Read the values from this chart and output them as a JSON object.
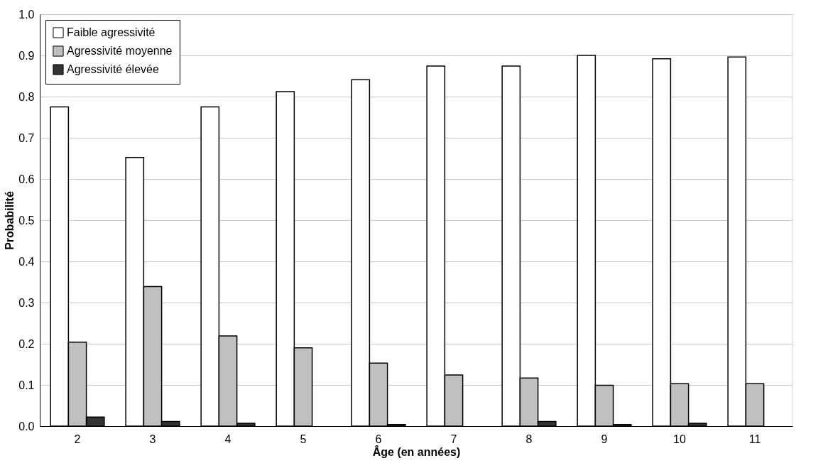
{
  "chart_data": {
    "type": "bar",
    "xlabel": "Âge (en années)",
    "ylabel": "Probabilité",
    "categories": [
      "2",
      "3",
      "4",
      "5",
      "6",
      "7",
      "8",
      "9",
      "10",
      "11"
    ],
    "series": [
      {
        "name": "Faible agressivité",
        "color": "#ffffff",
        "values": [
          0.775,
          0.652,
          0.775,
          0.812,
          0.841,
          0.874,
          0.874,
          0.9,
          0.892,
          0.896
        ]
      },
      {
        "name": "Agressivité moyenne",
        "color": "#c0c0c0",
        "values": [
          0.204,
          0.339,
          0.219,
          0.19,
          0.153,
          0.124,
          0.117,
          0.099,
          0.103,
          0.103
        ]
      },
      {
        "name": "Agressivité élevée",
        "color": "#333333",
        "values": [
          0.022,
          0.011,
          0.007,
          0,
          0.004,
          0,
          0.011,
          0.004,
          0.007,
          0
        ]
      }
    ],
    "ylim": [
      0,
      1.0
    ],
    "yticks": [
      {
        "value": 0,
        "label": "0.0"
      },
      0.1,
      0.2,
      0.3,
      0.4,
      0.5,
      0.6,
      0.7,
      0.8,
      0.9,
      {
        "value": 1,
        "label": "1.0"
      }
    ],
    "grid": "y",
    "legend": "top left"
  }
}
